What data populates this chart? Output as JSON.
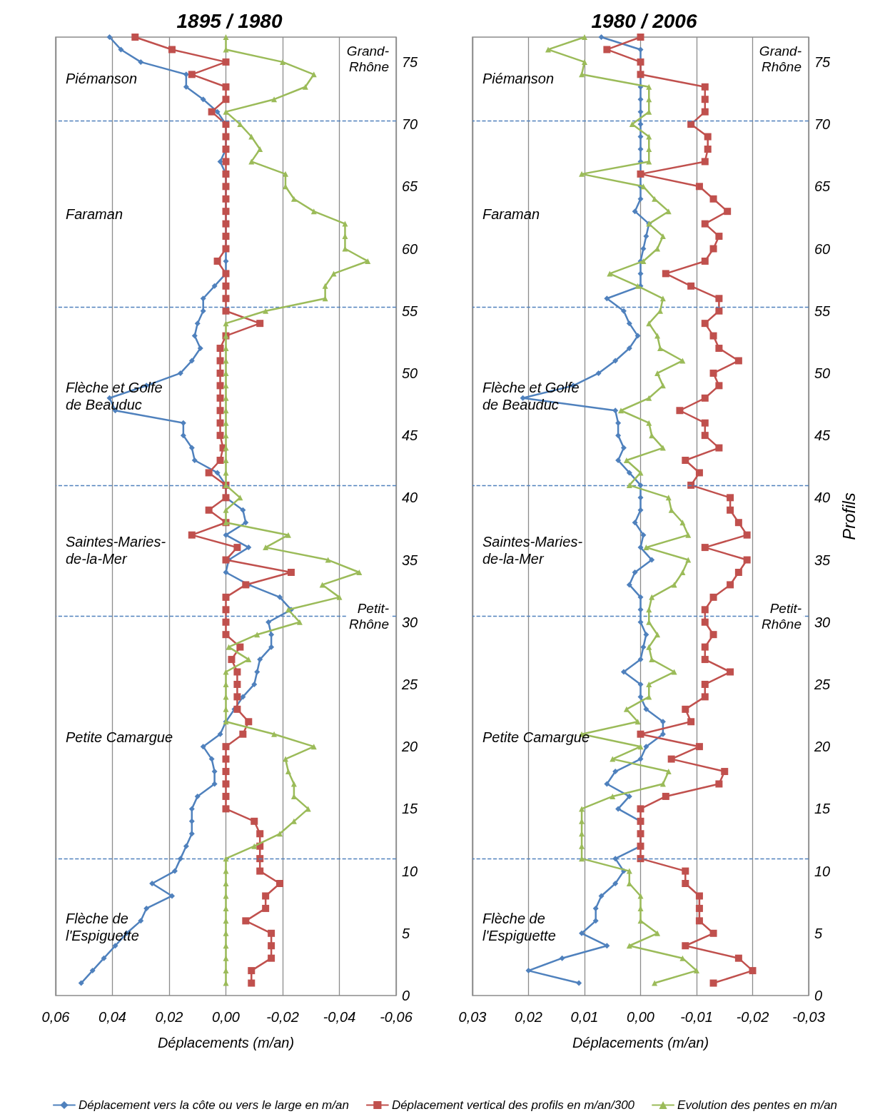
{
  "chart_data": [
    {
      "type": "line",
      "orientation": "horizontal",
      "title": "1895 / 1980",
      "xlabel": "Déplacements (m/an)",
      "x": [
        1,
        2,
        3,
        4,
        5,
        6,
        7,
        8,
        9,
        10,
        11,
        12,
        13,
        14,
        15,
        16,
        17,
        18,
        19,
        20,
        21,
        22,
        23,
        24,
        25,
        26,
        27,
        28,
        29,
        30,
        31,
        32,
        33,
        34,
        35,
        36,
        37,
        38,
        39,
        40,
        41,
        42,
        43,
        44,
        45,
        46,
        47,
        48,
        49,
        50,
        51,
        52,
        53,
        54,
        55,
        56,
        57,
        58,
        59,
        60,
        61,
        62,
        63,
        64,
        65,
        66,
        67,
        68,
        69,
        70,
        71,
        72,
        73,
        74,
        75,
        76,
        77
      ],
      "ylim": [
        0,
        77
      ],
      "yticks": [
        0,
        5,
        10,
        15,
        20,
        25,
        30,
        35,
        40,
        45,
        50,
        55,
        60,
        65,
        70,
        75
      ],
      "xlim": [
        0.06,
        -0.06
      ],
      "xticks": [
        {
          "value": 0.06,
          "label": "0,06"
        },
        {
          "value": 0.04,
          "label": "0,04"
        },
        {
          "value": 0.02,
          "label": "0,02"
        },
        {
          "value": 0,
          "label": "0,00"
        },
        {
          "value": -0.02,
          "label": "-0,02"
        },
        {
          "value": -0.04,
          "label": "-0,04"
        },
        {
          "value": -0.06,
          "label": "-0,06"
        }
      ],
      "grid": "x",
      "legend": false,
      "series": [
        {
          "color": "#4f81bd",
          "marker": "diamond",
          "values": [
            0.051,
            0.047,
            0.043,
            0.039,
            0.035,
            0.03,
            0.028,
            0.019,
            0.026,
            0.018,
            0.016,
            0.014,
            0.012,
            0.012,
            0.012,
            0.01,
            0.004,
            0.004,
            0.005,
            0.008,
            0.002,
            0,
            -0.003,
            -0.006,
            -0.01,
            -0.011,
            -0.012,
            -0.016,
            -0.016,
            -0.015,
            -0.023,
            -0.019,
            -0.008,
            0,
            -0.001,
            -0.008,
            0,
            -0.007,
            -0.006,
            0,
            0,
            0.003,
            0.011,
            0.012,
            0.015,
            0.015,
            0.039,
            0.041,
            0.028,
            0.016,
            0.012,
            0.009,
            0.011,
            0.01,
            0.008,
            0.008,
            0.004,
            0,
            0,
            0,
            0,
            0,
            0,
            0,
            0,
            0,
            0.002,
            0,
            0,
            0,
            0.003,
            0.008,
            0.014,
            0.014,
            0.03,
            0.037,
            0.041
          ]
        },
        {
          "color": "#c0504d",
          "marker": "square",
          "values": [
            -0.009,
            -0.009,
            -0.016,
            -0.016,
            -0.016,
            -0.007,
            -0.014,
            -0.014,
            -0.019,
            -0.012,
            -0.012,
            -0.012,
            -0.012,
            -0.01,
            0,
            0,
            0,
            0,
            0,
            0,
            -0.006,
            -0.008,
            -0.004,
            -0.004,
            -0.004,
            -0.004,
            -0.002,
            -0.005,
            0,
            0,
            0,
            0,
            -0.007,
            -0.023,
            0,
            -0.004,
            0.012,
            0,
            0.006,
            0,
            0,
            0.006,
            0.002,
            0.001,
            0.002,
            0.002,
            0.002,
            0.002,
            0.002,
            0.002,
            0.002,
            0.002,
            0,
            -0.012,
            0,
            0,
            0,
            0,
            0.003,
            0,
            0,
            0,
            0,
            0,
            0,
            0,
            0,
            0,
            0,
            0,
            0.005,
            0,
            0,
            0.012,
            0,
            0.019,
            0.032
          ]
        },
        {
          "color": "#9bbb59",
          "marker": "triangle",
          "values": [
            0,
            0,
            0,
            0,
            0,
            0,
            0,
            0,
            0,
            0,
            0,
            -0.01,
            -0.019,
            -0.024,
            -0.029,
            -0.024,
            -0.024,
            -0.022,
            -0.021,
            -0.031,
            -0.017,
            0,
            0,
            0,
            0,
            0,
            -0.008,
            -0.001,
            -0.011,
            -0.026,
            -0.022,
            -0.04,
            -0.034,
            -0.047,
            -0.036,
            -0.014,
            -0.022,
            0,
            0,
            -0.005,
            0,
            0,
            0,
            0,
            0,
            0,
            0,
            0,
            0,
            0,
            0,
            0,
            0,
            0,
            -0.014,
            -0.035,
            -0.035,
            -0.038,
            -0.05,
            -0.042,
            -0.042,
            -0.042,
            -0.031,
            -0.024,
            -0.021,
            -0.021,
            -0.009,
            -0.012,
            -0.009,
            -0.005,
            0,
            -0.017,
            -0.028,
            -0.031,
            -0.02,
            0,
            0
          ]
        }
      ],
      "ref_lines": [
        {
          "axis": "y",
          "value": 11,
          "color": "#4f81bd",
          "line_style": "dashed"
        },
        {
          "axis": "y",
          "value": 30.5,
          "color": "#4f81bd",
          "line_style": "dashed"
        },
        {
          "axis": "y",
          "value": 41,
          "color": "#4f81bd",
          "line_style": "dashed"
        },
        {
          "axis": "y",
          "value": 55.3,
          "color": "#4f81bd",
          "line_style": "dashed"
        },
        {
          "axis": "y",
          "value": 70.3,
          "color": "#4f81bd",
          "line_style": "dashed"
        }
      ],
      "annotations": [
        "Flèche de\nl'Espiguette",
        "Petite Camargue",
        "Saintes-Maries-\nde-la-Mer",
        "Flèche et Golfe\nde Beauduc",
        "Faraman",
        "Piémanson",
        "Petit-\nRhône",
        "Grand-\nRhône"
      ]
    },
    {
      "type": "line",
      "orientation": "horizontal",
      "title": "1980 / 2006",
      "xlabel": "Déplacements (m/an)",
      "ylabel": "Profils",
      "x": [
        1,
        2,
        3,
        4,
        5,
        6,
        7,
        8,
        9,
        10,
        11,
        12,
        13,
        14,
        15,
        16,
        17,
        18,
        19,
        20,
        21,
        22,
        23,
        24,
        25,
        26,
        27,
        28,
        29,
        30,
        31,
        32,
        33,
        34,
        35,
        36,
        37,
        38,
        39,
        40,
        41,
        42,
        43,
        44,
        45,
        46,
        47,
        48,
        49,
        50,
        51,
        52,
        53,
        54,
        55,
        56,
        57,
        58,
        59,
        60,
        61,
        62,
        63,
        64,
        65,
        66,
        67,
        68,
        69,
        70,
        71,
        72,
        73,
        74,
        75,
        76,
        77
      ],
      "ylim": [
        0,
        77
      ],
      "yticks": [
        0,
        5,
        10,
        15,
        20,
        25,
        30,
        35,
        40,
        45,
        50,
        55,
        60,
        65,
        70,
        75
      ],
      "xlim": [
        0.03,
        -0.03
      ],
      "xticks": [
        {
          "value": 0.03,
          "label": "0,03"
        },
        {
          "value": 0.02,
          "label": "0,02"
        },
        {
          "value": 0.01,
          "label": "0,01"
        },
        {
          "value": 0,
          "label": "0,00"
        },
        {
          "value": -0.01,
          "label": "-0,01"
        },
        {
          "value": -0.02,
          "label": "-0,02"
        },
        {
          "value": -0.03,
          "label": "-0,03"
        }
      ],
      "grid": "x",
      "legend": "bottom",
      "series": [
        {
          "name": "Déplacement vers la côte ou vers le large en m/an",
          "color": "#4f81bd",
          "marker": "diamond",
          "values": [
            0.011,
            0.02,
            0.014,
            0.006,
            0.0105,
            0.008,
            0.008,
            0.007,
            0.0045,
            0.003,
            0.0045,
            0,
            0,
            0,
            0.004,
            0.002,
            0.006,
            0.0045,
            0,
            -0.001,
            -0.004,
            -0.004,
            -0.001,
            0,
            0,
            0.003,
            0,
            -0.0005,
            -0.001,
            0,
            0,
            0,
            0.002,
            0.001,
            -0.002,
            0,
            -0.0005,
            0.001,
            0,
            0,
            0,
            0.002,
            0.004,
            0.003,
            0.004,
            0.004,
            0.0045,
            0.021,
            0.012,
            0.0075,
            0.0045,
            0.002,
            0.0005,
            0.002,
            0.003,
            0.006,
            0,
            0,
            0,
            -0.0005,
            -0.001,
            -0.0015,
            0.001,
            0,
            0,
            0,
            0,
            0,
            0,
            0,
            0,
            0,
            0,
            0,
            0,
            0,
            0.007
          ]
        },
        {
          "name": "Déplacement vertical des profils en m/an/300",
          "color": "#c0504d",
          "marker": "square",
          "values": [
            -0.013,
            -0.02,
            -0.0175,
            -0.008,
            -0.013,
            -0.0105,
            -0.0105,
            -0.0105,
            -0.008,
            -0.008,
            0,
            0,
            0,
            0,
            0,
            -0.0045,
            -0.014,
            -0.015,
            -0.0055,
            -0.0105,
            0,
            -0.009,
            -0.008,
            -0.0115,
            -0.0115,
            -0.016,
            -0.0115,
            -0.0115,
            -0.013,
            -0.0115,
            -0.0115,
            -0.013,
            -0.016,
            -0.0175,
            -0.019,
            -0.0115,
            -0.019,
            -0.0175,
            -0.016,
            -0.016,
            -0.009,
            -0.0105,
            -0.008,
            -0.014,
            -0.0115,
            -0.0115,
            -0.007,
            -0.0115,
            -0.014,
            -0.013,
            -0.0175,
            -0.014,
            -0.013,
            -0.0115,
            -0.014,
            -0.014,
            -0.009,
            -0.0045,
            -0.0115,
            -0.013,
            -0.014,
            -0.0115,
            -0.0155,
            -0.013,
            -0.0105,
            0,
            -0.0115,
            -0.012,
            -0.012,
            -0.009,
            -0.0115,
            -0.0115,
            -0.0115,
            0,
            0,
            0.006,
            0
          ]
        },
        {
          "name": "Evolution des pentes en m/an",
          "color": "#9bbb59",
          "marker": "triangle",
          "values": [
            -0.0025,
            -0.01,
            -0.0075,
            0.002,
            -0.003,
            0,
            0,
            0,
            0.002,
            0.002,
            0.0105,
            0.0105,
            0.0105,
            0.0105,
            0.0105,
            0.005,
            -0.004,
            -0.005,
            0.005,
            0,
            0.0105,
            0.0005,
            0.0025,
            -0.0015,
            -0.0015,
            -0.006,
            -0.002,
            -0.0015,
            -0.003,
            -0.0015,
            -0.0015,
            -0.002,
            -0.006,
            -0.0075,
            -0.0085,
            -0.001,
            -0.0085,
            -0.0075,
            -0.0055,
            -0.005,
            0.002,
            0,
            0.0025,
            -0.004,
            -0.002,
            -0.0015,
            0.0035,
            -0.0015,
            -0.004,
            -0.003,
            -0.0075,
            -0.0035,
            -0.003,
            -0.0015,
            -0.0035,
            -0.004,
            0.0005,
            0.0055,
            -0.0005,
            -0.003,
            -0.004,
            -0.0015,
            -0.005,
            -0.0025,
            -0.0005,
            0.0105,
            -0.0015,
            -0.0015,
            -0.0015,
            0.0015,
            -0.0015,
            -0.0015,
            -0.0015,
            0.0105,
            0.01,
            0.0165,
            0.01
          ]
        }
      ],
      "ref_lines": [
        {
          "axis": "y",
          "value": 11,
          "color": "#4f81bd",
          "line_style": "dashed"
        },
        {
          "axis": "y",
          "value": 30.5,
          "color": "#4f81bd",
          "line_style": "dashed"
        },
        {
          "axis": "y",
          "value": 41,
          "color": "#4f81bd",
          "line_style": "dashed"
        },
        {
          "axis": "y",
          "value": 55.3,
          "color": "#4f81bd",
          "line_style": "dashed"
        },
        {
          "axis": "y",
          "value": 70.3,
          "color": "#4f81bd",
          "line_style": "dashed"
        }
      ],
      "annotations": [
        "Flèche de\nl'Espiguette",
        "Petite Camargue",
        "Saintes-Maries-\nde-la-Mer",
        "Flèche et Golfe\nde Beauduc",
        "Faraman",
        "Piémanson",
        "Petit-\nRhône",
        "Grand-\nRhône"
      ]
    }
  ]
}
